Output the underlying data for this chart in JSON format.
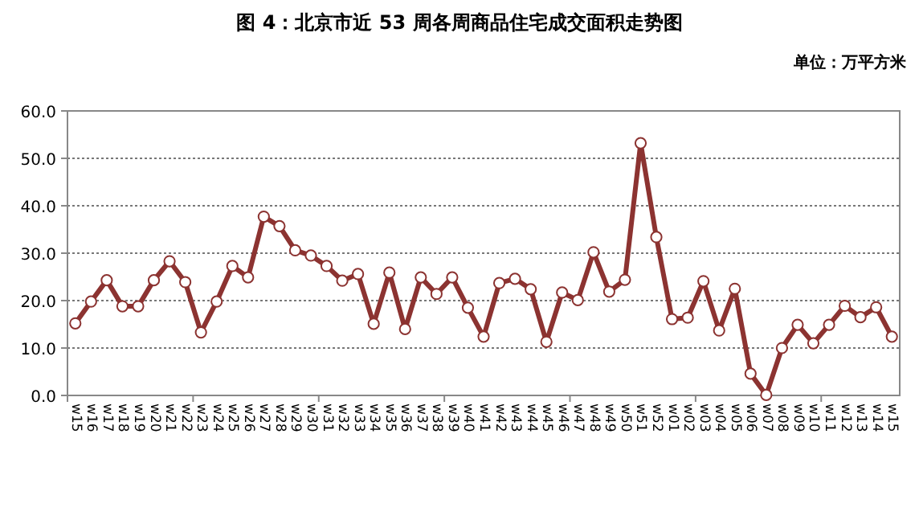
{
  "chart_data": {
    "type": "line",
    "title": "图 4：北京市近 53 周各周商品住宅成交面积走势图",
    "ylabel": "单位：万平方米",
    "categories": [
      "w15",
      "w16",
      "w17",
      "w18",
      "w19",
      "w20",
      "w21",
      "w22",
      "w23",
      "w24",
      "w25",
      "w26",
      "w27",
      "w28",
      "w29",
      "w30",
      "w31",
      "w32",
      "w33",
      "w34",
      "w35",
      "w36",
      "w37",
      "w38",
      "w39",
      "w40",
      "w41",
      "w42",
      "w43",
      "w44",
      "w45",
      "w46",
      "w47",
      "w48",
      "w49",
      "w50",
      "w51",
      "w52",
      "w01",
      "w02",
      "w03",
      "w04",
      "w05",
      "w06",
      "w07",
      "w08",
      "w09",
      "w10",
      "w11",
      "w12",
      "w13",
      "w14",
      "w15"
    ],
    "series": [
      {
        "color": "#8c3331",
        "values": [
          15.2,
          19.8,
          24.3,
          18.8,
          18.8,
          24.3,
          28.3,
          23.9,
          13.3,
          19.8,
          27.3,
          24.9,
          37.7,
          35.7,
          30.6,
          29.5,
          27.3,
          24.2,
          25.6,
          15.1,
          25.9,
          14.0,
          24.9,
          21.4,
          24.9,
          18.5,
          12.4,
          23.7,
          24.6,
          22.4,
          11.3,
          21.7,
          20.1,
          30.2,
          21.9,
          24.4,
          53.2,
          33.4,
          16.1,
          16.4,
          24.1,
          13.7,
          22.5,
          4.6,
          0.1,
          10.0,
          14.9,
          11.0,
          14.9,
          18.9,
          16.5,
          18.6,
          12.4
        ]
      }
    ],
    "ylim": [
      0,
      60
    ],
    "yticks": [
      {
        "value": 0,
        "label": "0.0"
      },
      {
        "value": 10,
        "label": "10.0"
      },
      {
        "value": 20,
        "label": "20.0"
      },
      {
        "value": 30,
        "label": "30.0"
      },
      {
        "value": 40,
        "label": "40.0"
      },
      {
        "value": 50,
        "label": "50.0"
      },
      {
        "value": 60,
        "label": "60.0"
      }
    ],
    "grid": "y",
    "marker": "circle",
    "line_style": "solid"
  }
}
